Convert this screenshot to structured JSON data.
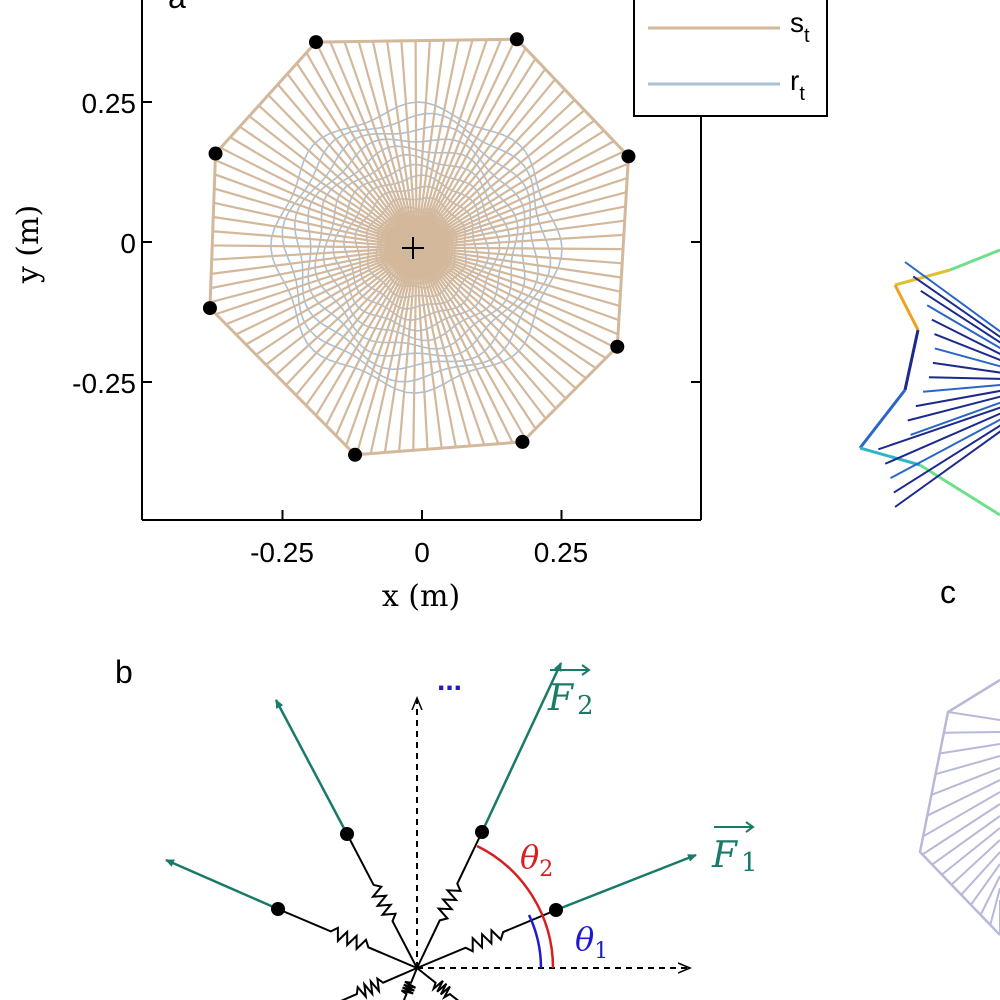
{
  "panels": {
    "a": "a",
    "b": "b",
    "c": "c"
  },
  "chart_data": {
    "type": "line",
    "xlabel": "x (m)",
    "ylabel": "y (m)",
    "xlim": [
      -0.5,
      0.5
    ],
    "ylim": [
      -0.5,
      0.45
    ],
    "xticks": [
      "-0.25",
      "0",
      "0.25"
    ],
    "yticks": [
      "0.25",
      "0",
      "-0.25"
    ],
    "xtick_values": [
      -0.25,
      0,
      0.25
    ],
    "ytick_values": [
      0.25,
      0,
      -0.25
    ],
    "legend": {
      "position": "top-right",
      "entries": [
        "s_t",
        "r_t"
      ]
    },
    "colors": {
      "s_t": "#d3b89b",
      "r_t": "#a9c0d6"
    },
    "series": [
      {
        "name": "s_t",
        "anchor_points": [
          {
            "x": -0.19,
            "y": 0.357
          },
          {
            "x": 0.17,
            "y": 0.362
          },
          {
            "x": 0.37,
            "y": 0.153
          },
          {
            "x": 0.35,
            "y": -0.187
          },
          {
            "x": 0.18,
            "y": -0.357
          },
          {
            "x": -0.12,
            "y": -0.38
          },
          {
            "x": -0.38,
            "y": -0.118
          },
          {
            "x": -0.37,
            "y": 0.158
          }
        ]
      },
      {
        "name": "r_t",
        "max_radius": 0.25
      }
    ],
    "center": {
      "x": -0.01,
      "y": -0.01
    }
  },
  "diagram_b": {
    "force_1": {
      "base": "F",
      "sub": "1"
    },
    "force_2": {
      "base": "F",
      "sub": "2"
    },
    "theta_1": {
      "base": "θ",
      "sub": "1"
    },
    "theta_2": {
      "base": "θ",
      "sub": "2"
    },
    "ellipsis": "...",
    "colors": {
      "force": "#1a7a6a",
      "theta_1": "#1c1ccc",
      "theta_2": "#d62020",
      "spring": "#000000"
    }
  },
  "panel_b_right": {
    "colors": [
      "#1c2a8c",
      "#2a66c8",
      "#2fb4c8",
      "#6ee08a",
      "#e0c030",
      "#f0a020"
    ]
  },
  "panel_c_right": {
    "color": "#b8b8d8"
  }
}
